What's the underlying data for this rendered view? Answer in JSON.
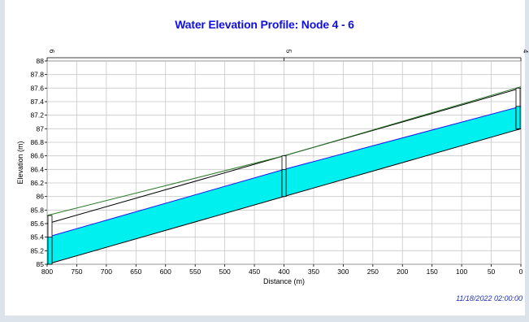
{
  "window": {
    "timestamp": "11/18/2022 02:00:00"
  },
  "chart_data": {
    "type": "area",
    "title": "Water Elevation Profile: Node 4 - 6",
    "xlabel": "Distance (m)",
    "ylabel": "Elevation (m)",
    "xlim": [
      800,
      0
    ],
    "ylim": [
      85,
      88
    ],
    "x_ticks": [
      800,
      750,
      700,
      650,
      600,
      550,
      500,
      450,
      400,
      350,
      300,
      250,
      200,
      150,
      100,
      50,
      0
    ],
    "y_ticks": [
      85,
      85.2,
      85.4,
      85.6,
      85.8,
      86,
      86.2,
      86.4,
      86.6,
      86.8,
      87,
      87.2,
      87.4,
      87.6,
      87.8,
      88
    ],
    "y_tick_labels": [
      "85",
      "85.2",
      "85.4",
      "85.6",
      "85.8",
      "86",
      "86.2",
      "86.4",
      "86.6",
      "86.8",
      "87",
      "87.2",
      "87.4",
      "87.6",
      "87.8",
      "88"
    ],
    "grid": true,
    "nodes": [
      {
        "label": "6",
        "x": 800,
        "invert": 85.0,
        "crown": 85.72,
        "water": 85.4
      },
      {
        "label": "5",
        "x": 400,
        "invert": 86.0,
        "crown": 86.6,
        "water": 86.4
      },
      {
        "label": "4",
        "x": 0,
        "invert": 87.0,
        "crown": 87.6,
        "water": 87.33
      }
    ],
    "conduits": [
      {
        "from": 0,
        "to": 1,
        "invert": [
          85.0,
          86.0
        ],
        "crown": [
          85.6,
          86.6
        ],
        "water": [
          85.4,
          86.4
        ],
        "ground": [
          85.72,
          86.6
        ]
      },
      {
        "from": 1,
        "to": 2,
        "invert": [
          86.0,
          87.0
        ],
        "crown": [
          86.6,
          87.6
        ],
        "water": [
          86.4,
          87.33
        ],
        "ground": [
          86.6,
          87.62
        ]
      }
    ],
    "series": [
      {
        "name": "",
        "color": "#2a7a2a"
      },
      {
        "name": "",
        "color": "#1a1aee"
      },
      {
        "name": "",
        "color": "#00f0f0"
      }
    ],
    "colors": {
      "ground": "#2a7a2a",
      "water_line": "#1a1aee",
      "water_fill": "#00f0f0",
      "pipe": "#000000",
      "grid": "#c8c8c8"
    }
  }
}
